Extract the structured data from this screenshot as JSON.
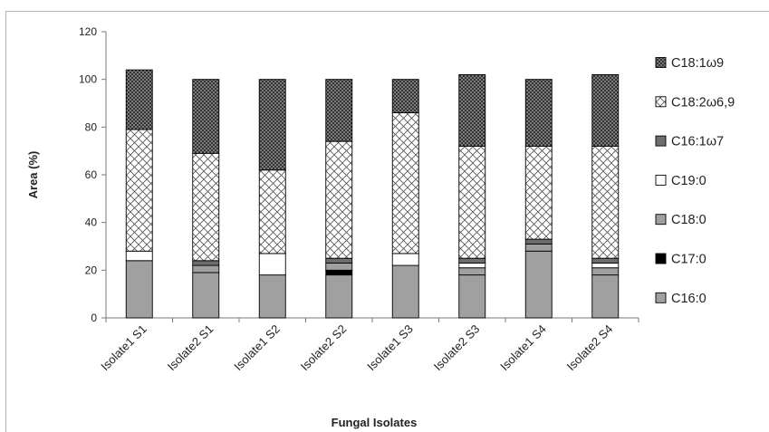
{
  "chart_data": {
    "type": "stacked-bar",
    "title": "",
    "xlabel": "Fungal Isolates",
    "ylabel": "Area (%)",
    "ylim": [
      0,
      120
    ],
    "yticks": [
      0,
      20,
      40,
      60,
      80,
      100,
      120
    ],
    "grid": false,
    "legend_position": "right",
    "categories": [
      "Isolate1 S1",
      "Isolate2 S1",
      "Isolate1 S2",
      "Isolate2 S2",
      "Isolate1 S3",
      "Isolate2 S3",
      "Isolate1 S4",
      "Isolate2 S4"
    ],
    "series": [
      {
        "name": "C16:0",
        "pattern": "solid-gray",
        "color": "#a0a0a0",
        "values": [
          24,
          19,
          18,
          18,
          22,
          18,
          28,
          18
        ]
      },
      {
        "name": "C17:0",
        "pattern": "solid-black",
        "color": "#000000",
        "values": [
          0,
          0,
          0,
          2,
          0,
          0,
          0,
          0
        ]
      },
      {
        "name": "C18:0",
        "pattern": "solid-gray",
        "color": "#a0a0a0",
        "values": [
          0,
          3,
          0,
          3,
          0,
          3,
          3,
          3
        ]
      },
      {
        "name": "C19:0",
        "pattern": "white",
        "color": "#ffffff",
        "values": [
          4,
          0,
          9,
          0,
          5,
          2,
          0,
          2
        ]
      },
      {
        "name": "C16:1ω7",
        "pattern": "solid-dark",
        "color": "#6e6e6e",
        "values": [
          0,
          2,
          0,
          2,
          0,
          2,
          2,
          2
        ]
      },
      {
        "name": "C18:2ω6,9",
        "pattern": "diagonal-cross",
        "color": "#ffffff",
        "values": [
          51,
          45,
          35,
          49,
          59,
          47,
          39,
          47
        ]
      },
      {
        "name": "C18:1ω9",
        "pattern": "crosshatch",
        "color": "#5a5a5a",
        "values": [
          25,
          31,
          38,
          26,
          14,
          30,
          28,
          30
        ]
      }
    ]
  }
}
